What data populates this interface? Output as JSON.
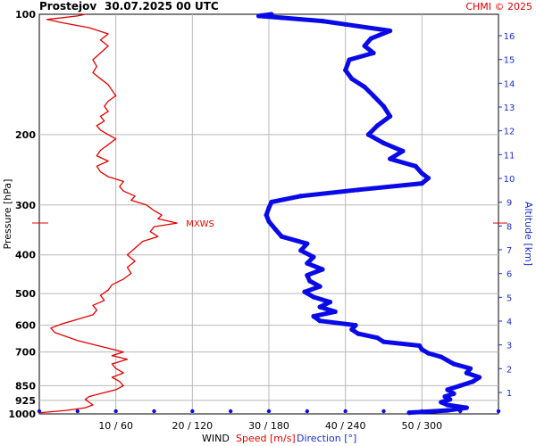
{
  "header": {
    "station": "Prostejov",
    "datetime": "30.07.2025 00 UTC",
    "copyright": "CHMI © 2025"
  },
  "colors": {
    "speed": "#e00000",
    "direction": "#0a0ae6",
    "altitude_axis": "#1a2fc8",
    "grid": "#b8b8b8"
  },
  "chart_data": {
    "type": "line",
    "title": "Prostejov    30.07.2025 00 UTC",
    "ylabel": "Pressure [hPa]",
    "ylabel_right": "Altitude [km]",
    "xlabel": "WIND",
    "xlabel_speed": "Speed [m/s]",
    "xlabel_direction": "Direction [°]",
    "y_scale": "log",
    "ylim": [
      1000,
      100
    ],
    "pressure_ticks": [
      100,
      200,
      300,
      400,
      500,
      600,
      700,
      850,
      925,
      1000
    ],
    "x_ticks": [
      "10 / 60",
      "20 / 120",
      "30 / 180",
      "40 / 240",
      "50 / 300"
    ],
    "speed_range": [
      0,
      60
    ],
    "direction_range": [
      0,
      360
    ],
    "altitude_ticks": [
      1,
      2,
      3,
      4,
      5,
      6,
      7,
      8,
      9,
      10,
      11,
      12,
      13,
      14,
      15,
      16
    ],
    "annotation": {
      "text": "MXWS",
      "pressure": 333,
      "speed": 18
    },
    "series": [
      {
        "name": "Speed [m/s]",
        "color": "#e00000",
        "points": [
          [
            993,
            0.2
          ],
          [
            980,
            3.5
          ],
          [
            965,
            6.0
          ],
          [
            950,
            7.0
          ],
          [
            935,
            6.5
          ],
          [
            920,
            6.0
          ],
          [
            905,
            6.5
          ],
          [
            890,
            8.0
          ],
          [
            870,
            10.0
          ],
          [
            850,
            11.0
          ],
          [
            830,
            10.5
          ],
          [
            810,
            9.5
          ],
          [
            790,
            11.0
          ],
          [
            770,
            10.0
          ],
          [
            750,
            9.5
          ],
          [
            730,
            11.5
          ],
          [
            715,
            9.5
          ],
          [
            700,
            11.0
          ],
          [
            685,
            9.0
          ],
          [
            670,
            7.0
          ],
          [
            655,
            5.0
          ],
          [
            640,
            3.5
          ],
          [
            625,
            2.0
          ],
          [
            610,
            1.5
          ],
          [
            595,
            3.0
          ],
          [
            580,
            5.0
          ],
          [
            565,
            7.0
          ],
          [
            550,
            7.5
          ],
          [
            535,
            7.0
          ],
          [
            520,
            8.5
          ],
          [
            505,
            8.0
          ],
          [
            490,
            9.0
          ],
          [
            475,
            9.5
          ],
          [
            460,
            11.0
          ],
          [
            445,
            12.0
          ],
          [
            430,
            11.5
          ],
          [
            415,
            12.5
          ],
          [
            400,
            11.5
          ],
          [
            385,
            12.5
          ],
          [
            370,
            13.5
          ],
          [
            360,
            15.5
          ],
          [
            350,
            14.5
          ],
          [
            340,
            15.0
          ],
          [
            333,
            18.0
          ],
          [
            325,
            15.5
          ],
          [
            318,
            16.0
          ],
          [
            310,
            15.0
          ],
          [
            300,
            14.0
          ],
          [
            292,
            12.0
          ],
          [
            285,
            12.5
          ],
          [
            277,
            11.0
          ],
          [
            270,
            10.5
          ],
          [
            262,
            11.0
          ],
          [
            255,
            9.0
          ],
          [
            248,
            8.0
          ],
          [
            240,
            7.5
          ],
          [
            233,
            9.0
          ],
          [
            226,
            7.5
          ],
          [
            219,
            8.0
          ],
          [
            212,
            9.0
          ],
          [
            205,
            10.0
          ],
          [
            200,
            9.0
          ],
          [
            195,
            8.0
          ],
          [
            190,
            7.5
          ],
          [
            185,
            8.5
          ],
          [
            180,
            8.0
          ],
          [
            175,
            9.0
          ],
          [
            170,
            8.5
          ],
          [
            165,
            9.0
          ],
          [
            160,
            10.0
          ],
          [
            155,
            9.5
          ],
          [
            150,
            9.0
          ],
          [
            145,
            8.0
          ],
          [
            140,
            7.0
          ],
          [
            135,
            7.5
          ],
          [
            130,
            7.0
          ],
          [
            125,
            8.0
          ],
          [
            120,
            9.0
          ],
          [
            116,
            8.0
          ],
          [
            112,
            9.0
          ],
          [
            108,
            6.5
          ],
          [
            105,
            3.0
          ],
          [
            103,
            1.0
          ],
          [
            101,
            5.0
          ],
          [
            100,
            6.0
          ]
        ]
      },
      {
        "name": "Direction [°]",
        "color": "#0a0ae6",
        "points": [
          [
            993,
            290
          ],
          [
            980,
            320
          ],
          [
            965,
            335
          ],
          [
            950,
            320
          ],
          [
            935,
            315
          ],
          [
            920,
            322
          ],
          [
            905,
            318
          ],
          [
            890,
            325
          ],
          [
            870,
            320
          ],
          [
            850,
            330
          ],
          [
            830,
            340
          ],
          [
            810,
            345
          ],
          [
            790,
            335
          ],
          [
            770,
            338
          ],
          [
            750,
            325
          ],
          [
            735,
            320
          ],
          [
            720,
            315
          ],
          [
            705,
            305
          ],
          [
            690,
            300
          ],
          [
            675,
            298
          ],
          [
            660,
            270
          ],
          [
            645,
            265
          ],
          [
            630,
            250
          ],
          [
            615,
            245
          ],
          [
            600,
            248
          ],
          [
            585,
            220
          ],
          [
            570,
            215
          ],
          [
            555,
            232
          ],
          [
            540,
            220
          ],
          [
            525,
            228
          ],
          [
            510,
            215
          ],
          [
            495,
            208
          ],
          [
            480,
            220
          ],
          [
            465,
            212
          ],
          [
            450,
            210
          ],
          [
            435,
            222
          ],
          [
            420,
            210
          ],
          [
            405,
            215
          ],
          [
            390,
            205
          ],
          [
            375,
            210
          ],
          [
            360,
            190
          ],
          [
            345,
            185
          ],
          [
            330,
            180
          ],
          [
            318,
            178
          ],
          [
            305,
            180
          ],
          [
            295,
            182
          ],
          [
            285,
            205
          ],
          [
            275,
            250
          ],
          [
            265,
            300
          ],
          [
            257,
            305
          ],
          [
            250,
            300
          ],
          [
            240,
            295
          ],
          [
            230,
            275
          ],
          [
            220,
            285
          ],
          [
            210,
            270
          ],
          [
            200,
            258
          ],
          [
            190,
            265
          ],
          [
            180,
            275
          ],
          [
            170,
            270
          ],
          [
            160,
            262
          ],
          [
            152,
            255
          ],
          [
            145,
            245
          ],
          [
            138,
            240
          ],
          [
            130,
            243
          ],
          [
            125,
            262
          ],
          [
            120,
            255
          ],
          [
            115,
            260
          ],
          [
            110,
            275
          ],
          [
            106,
            240
          ],
          [
            104,
            222
          ],
          [
            102,
            190
          ],
          [
            101,
            172
          ],
          [
            100,
            182
          ]
        ]
      }
    ]
  }
}
